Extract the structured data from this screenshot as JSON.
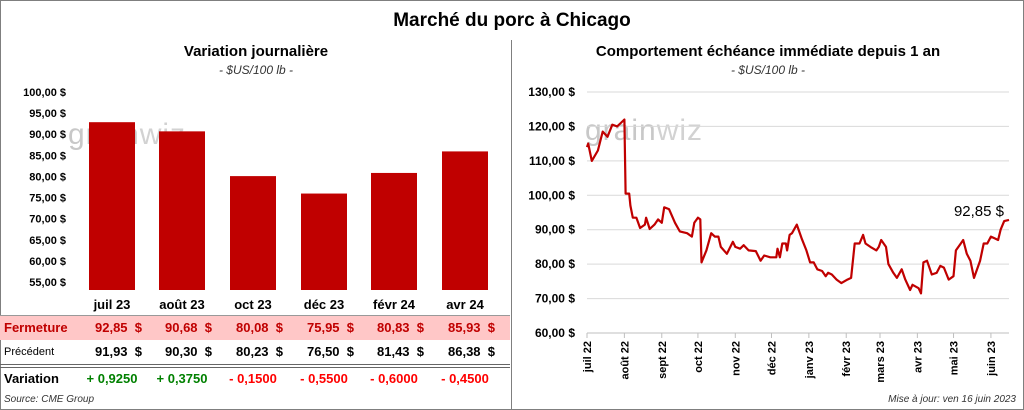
{
  "title": "Marché du porc à Chicago",
  "left": {
    "subtitle": "Variation journalière",
    "unit": "- $US/100 lb -",
    "watermark": "grainwiz",
    "row_labels": {
      "close": "Fermeture",
      "previous": "Précédent",
      "change": "Variation"
    },
    "close_display": [
      "92,85  $",
      "90,68  $",
      "80,08  $",
      "75,95  $",
      "80,83  $",
      "85,93  $"
    ],
    "previous_display": [
      "91,93  $",
      "90,30  $",
      "80,23  $",
      "76,50  $",
      "81,43  $",
      "86,38  $"
    ],
    "change_display": [
      "+ 0,9250",
      "+ 0,3750",
      "- 0,1500",
      "- 0,5500",
      "- 0,6000",
      "- 0,4500"
    ],
    "source": "Source: CME Group"
  },
  "right": {
    "subtitle": "Comportement  échéance immédiate depuis 1 an",
    "unit": "- $US/100 lb -",
    "watermark": "grainwiz",
    "last_label": "92,85 $",
    "updated": "Mise à jour: ven 16 juin 2023"
  },
  "colors": {
    "bar": "#c00000",
    "line": "#c00000",
    "positive": "#008000",
    "negative": "#ff0000",
    "close_row_bg": "#ffc7c7",
    "grid": "#d9d9d9"
  },
  "chart_data": [
    {
      "type": "bar",
      "title": "Variation journalière",
      "subtitle": "- $US/100 lb -",
      "categories": [
        "juil 23",
        "août 23",
        "oct 23",
        "déc 23",
        "févr 24",
        "avr 24"
      ],
      "values": [
        92.85,
        90.68,
        80.08,
        75.95,
        80.83,
        85.93
      ],
      "previous": [
        91.93,
        90.3,
        80.23,
        76.5,
        81.43,
        86.38
      ],
      "change": [
        0.925,
        0.375,
        -0.15,
        -0.55,
        -0.6,
        -0.45
      ],
      "ylim": [
        55,
        100
      ],
      "yticks": [
        "55,00 $",
        "60,00 $",
        "65,00 $",
        "70,00 $",
        "75,00 $",
        "80,00 $",
        "85,00 $",
        "90,00 $",
        "95,00 $",
        "100,00 $"
      ],
      "grid": false
    },
    {
      "type": "line",
      "title": "Comportement  échéance immédiate depuis 1 an",
      "subtitle": "- $US/100 lb -",
      "ylim": [
        60,
        130
      ],
      "yticks": [
        "60,00 $",
        "70,00 $",
        "80,00 $",
        "90,00 $",
        "100,00 $",
        "110,00 $",
        "120,00 $",
        "130,00 $"
      ],
      "xticks": [
        "juil 22",
        "août 22",
        "sept 22",
        "oct 22",
        "nov 22",
        "déc 22",
        "janv 23",
        "févr 23",
        "mars 23",
        "avr 23",
        "mai 23",
        "juin 23"
      ],
      "xtick_dates": [
        "2022-07-01",
        "2022-08-01",
        "2022-09-01",
        "2022-10-01",
        "2022-11-01",
        "2022-12-01",
        "2023-01-01",
        "2023-02-01",
        "2023-03-01",
        "2023-04-01",
        "2023-05-01",
        "2023-06-01"
      ],
      "grid": true,
      "last_value": 92.85,
      "points": [
        [
          "2022-07-01",
          114
        ],
        [
          "2022-07-02",
          115
        ],
        [
          "2022-07-05",
          110
        ],
        [
          "2022-07-10",
          113
        ],
        [
          "2022-07-14",
          118.5
        ],
        [
          "2022-07-18",
          117
        ],
        [
          "2022-07-22",
          120.5
        ],
        [
          "2022-07-26",
          120
        ],
        [
          "2022-07-29",
          121
        ],
        [
          "2022-08-01",
          122
        ],
        [
          "2022-08-02",
          100.5
        ],
        [
          "2022-08-05",
          100.5
        ],
        [
          "2022-08-06",
          97
        ],
        [
          "2022-08-08",
          93.5
        ],
        [
          "2022-08-11",
          93.5
        ],
        [
          "2022-08-14",
          90.5
        ],
        [
          "2022-08-18",
          91.5
        ],
        [
          "2022-08-19",
          93.5
        ],
        [
          "2022-08-22",
          90.2
        ],
        [
          "2022-08-26",
          91.5
        ],
        [
          "2022-08-29",
          93
        ],
        [
          "2022-09-01",
          92
        ],
        [
          "2022-09-03",
          96.5
        ],
        [
          "2022-09-07",
          96
        ],
        [
          "2022-09-12",
          92
        ],
        [
          "2022-09-16",
          89.5
        ],
        [
          "2022-09-22",
          89
        ],
        [
          "2022-09-26",
          88
        ],
        [
          "2022-09-28",
          92
        ],
        [
          "2022-10-01",
          93.5
        ],
        [
          "2022-10-03",
          93
        ],
        [
          "2022-10-04",
          80.5
        ],
        [
          "2022-10-08",
          84
        ],
        [
          "2022-10-12",
          89
        ],
        [
          "2022-10-15",
          88
        ],
        [
          "2022-10-18",
          88
        ],
        [
          "2022-10-20",
          85
        ],
        [
          "2022-10-25",
          83
        ],
        [
          "2022-10-30",
          86.5
        ],
        [
          "2022-11-01",
          85
        ],
        [
          "2022-11-05",
          84.5
        ],
        [
          "2022-11-08",
          85.5
        ],
        [
          "2022-11-12",
          84
        ],
        [
          "2022-11-18",
          83.8
        ],
        [
          "2022-11-22",
          81
        ],
        [
          "2022-11-25",
          82.5
        ],
        [
          "2022-11-30",
          82
        ],
        [
          "2022-12-05",
          82
        ],
        [
          "2022-12-06",
          84.5
        ],
        [
          "2022-12-08",
          82
        ],
        [
          "2022-12-10",
          86
        ],
        [
          "2022-12-13",
          86
        ],
        [
          "2022-12-14",
          84
        ],
        [
          "2022-12-16",
          88.5
        ],
        [
          "2022-12-18",
          89
        ],
        [
          "2022-12-22",
          91.5
        ],
        [
          "2022-12-26",
          87.5
        ],
        [
          "2022-12-30",
          84
        ],
        [
          "2023-01-02",
          80.5
        ],
        [
          "2023-01-05",
          80.5
        ],
        [
          "2023-01-08",
          78.5
        ],
        [
          "2023-01-12",
          78
        ],
        [
          "2023-01-15",
          76.5
        ],
        [
          "2023-01-17",
          77.5
        ],
        [
          "2023-01-20",
          77
        ],
        [
          "2023-01-24",
          75.5
        ],
        [
          "2023-01-28",
          74.5
        ],
        [
          "2023-02-02",
          75.5
        ],
        [
          "2023-02-05",
          76
        ],
        [
          "2023-02-08",
          86
        ],
        [
          "2023-02-12",
          86
        ],
        [
          "2023-02-15",
          88.5
        ],
        [
          "2023-02-17",
          86
        ],
        [
          "2023-02-22",
          84.8
        ],
        [
          "2023-02-26",
          84
        ],
        [
          "2023-02-28",
          85
        ],
        [
          "2023-03-02",
          87
        ],
        [
          "2023-03-06",
          85
        ],
        [
          "2023-03-08",
          80
        ],
        [
          "2023-03-12",
          77.5
        ],
        [
          "2023-03-15",
          76
        ],
        [
          "2023-03-19",
          78.5
        ],
        [
          "2023-03-22",
          75.5
        ],
        [
          "2023-03-26",
          72.5
        ],
        [
          "2023-03-28",
          74
        ],
        [
          "2023-04-02",
          73
        ],
        [
          "2023-04-04",
          71.5
        ],
        [
          "2023-04-06",
          80.5
        ],
        [
          "2023-04-09",
          81
        ],
        [
          "2023-04-13",
          77
        ],
        [
          "2023-04-17",
          77.5
        ],
        [
          "2023-04-20",
          79.5
        ],
        [
          "2023-04-23",
          79
        ],
        [
          "2023-04-27",
          75.5
        ],
        [
          "2023-05-01",
          76.5
        ],
        [
          "2023-05-03",
          84
        ],
        [
          "2023-05-07",
          86
        ],
        [
          "2023-05-09",
          87
        ],
        [
          "2023-05-12",
          83
        ],
        [
          "2023-05-15",
          81
        ],
        [
          "2023-05-18",
          76
        ],
        [
          "2023-05-23",
          81
        ],
        [
          "2023-05-26",
          86
        ],
        [
          "2023-05-29",
          86
        ],
        [
          "2023-06-01",
          88
        ],
        [
          "2023-06-04",
          87.5
        ],
        [
          "2023-06-07",
          87
        ],
        [
          "2023-06-09",
          90
        ],
        [
          "2023-06-12",
          92.5
        ],
        [
          "2023-06-16",
          92.85
        ]
      ]
    }
  ]
}
